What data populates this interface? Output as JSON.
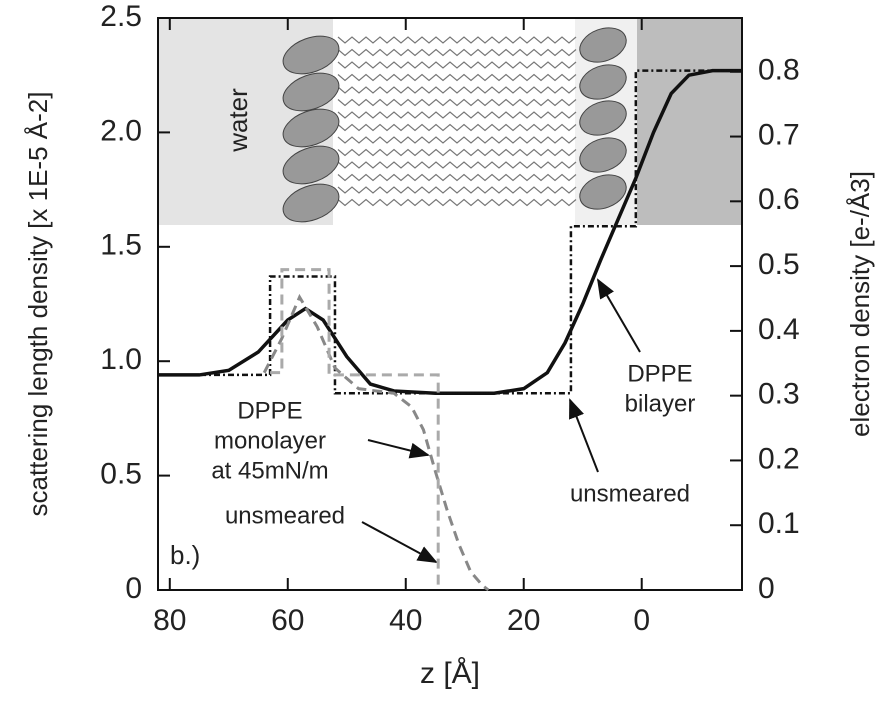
{
  "chart_data": {
    "type": "line",
    "xlabel": "z [Å]",
    "ylabel": "scattering length density [x 1E-5 Å-2]",
    "y2label": "electron density [e-/Å3]",
    "xlim": [
      82,
      -17
    ],
    "xticks": [
      80,
      60,
      40,
      20,
      0
    ],
    "ylim": [
      0,
      2.5
    ],
    "yticks": [
      0,
      0.5,
      {
        "value": 1,
        "label": "1.0"
      },
      1.5,
      {
        "value": 2,
        "label": "2.0"
      },
      2.5
    ],
    "y2lim": [
      0,
      0.883
    ],
    "y2ticks": [
      0,
      0.1,
      0.2,
      0.3,
      0.4,
      0.5,
      0.6,
      0.7,
      0.8
    ],
    "series": [
      {
        "color": "#111111",
        "style": "solid",
        "x": [
          82,
          75,
          70,
          65,
          60,
          57,
          54,
          50,
          46,
          42,
          35,
          25,
          20,
          16,
          13,
          10,
          7,
          4,
          1,
          -2,
          -5,
          -8,
          -12,
          -17
        ],
        "values": [
          0.94,
          0.94,
          0.96,
          1.04,
          1.18,
          1.23,
          1.18,
          1.02,
          0.9,
          0.87,
          0.86,
          0.86,
          0.88,
          0.95,
          1.08,
          1.25,
          1.44,
          1.62,
          1.8,
          2.0,
          2.17,
          2.25,
          2.27,
          2.27
        ]
      },
      {
        "color": "#111111",
        "style": "dashdot",
        "x": [
          82,
          63,
          63,
          52,
          52,
          12,
          12,
          1,
          1,
          -17
        ],
        "values": [
          0.94,
          0.94,
          1.37,
          1.37,
          0.86,
          0.86,
          1.59,
          1.59,
          2.27,
          2.27
        ]
      },
      {
        "color": "#888888",
        "style": "dashed",
        "x": [
          64,
          61,
          58,
          55,
          52,
          48,
          42,
          39,
          37,
          35,
          33,
          31,
          29,
          27,
          26
        ],
        "values": [
          0.95,
          1.1,
          1.28,
          1.15,
          0.97,
          0.88,
          0.86,
          0.8,
          0.7,
          0.52,
          0.35,
          0.2,
          0.08,
          0.02,
          0
        ]
      },
      {
        "color": "#aaaaaa",
        "style": "dashed",
        "x": [
          63,
          61,
          61,
          53,
          53,
          34.5,
          34.5
        ],
        "values": [
          0.95,
          0.95,
          1.4,
          1.4,
          0.94,
          0.94,
          0
        ]
      }
    ],
    "annotations": [
      {
        "lines": [
          "water"
        ]
      },
      {
        "lines": [
          "DPPE",
          "bilayer"
        ]
      },
      {
        "lines": [
          "unsmeared"
        ]
      },
      {
        "lines": [
          "DPPE",
          "monolayer",
          "at 45mN/m"
        ]
      },
      {
        "lines": [
          "unsmeared"
        ]
      },
      {
        "lines": [
          "b.)"
        ]
      }
    ]
  }
}
